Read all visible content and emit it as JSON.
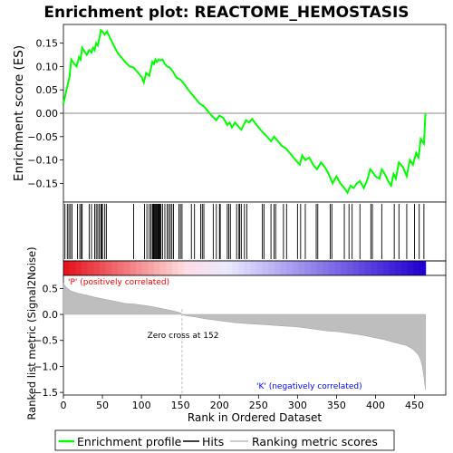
{
  "title": "Enrichment plot: REACTOME_HEMOSTASIS",
  "top_panel": {
    "ylabel": "Enrichment score (ES)"
  },
  "bottom_panel": {
    "ylabel": "Ranked list metric (Signal2Noise)",
    "xlabel": "Rank in Ordered Dataset",
    "zero_cross_label": "Zero cross at 152",
    "pos_label": "'P' (positively correlated)",
    "neg_label": "'K' (negatively correlated)"
  },
  "legend": {
    "enrichment": "Enrichment profile",
    "hits": "Hits",
    "ranking": "Ranking metric scores"
  },
  "colors": {
    "es_line": "#00ff00",
    "pos_label": "#ff0000",
    "neg_label": "#0000ff",
    "metric_fill": "#bebebe"
  },
  "chart_data": [
    {
      "type": "line",
      "name": "enrichment-profile",
      "xlim": [
        0,
        490
      ],
      "ylim": [
        -0.19,
        0.19
      ],
      "xticks": [
        0,
        50,
        100,
        150,
        200,
        250,
        300,
        350,
        400,
        450
      ],
      "yticks": [
        -0.15,
        -0.1,
        -0.05,
        0.0,
        0.05,
        0.1,
        0.15
      ],
      "ytick_labels": [
        "−0.15",
        "−0.10",
        "−0.05",
        "0.00",
        "0.05",
        "0.10",
        "0.15"
      ],
      "x": [
        0,
        2,
        4,
        6,
        8,
        10,
        14,
        17,
        20,
        22,
        24,
        26,
        30,
        33,
        36,
        38,
        40,
        42,
        44,
        46,
        48,
        50,
        53,
        56,
        60,
        63,
        66,
        70,
        75,
        80,
        85,
        90,
        95,
        100,
        103,
        106,
        110,
        112,
        114,
        116,
        118,
        120,
        122,
        124,
        127,
        130,
        133,
        136,
        140,
        145,
        150,
        155,
        160,
        165,
        170,
        175,
        180,
        185,
        190,
        193,
        196,
        200,
        205,
        210,
        213,
        216,
        220,
        225,
        228,
        231,
        234,
        238,
        242,
        246,
        250,
        255,
        258,
        262,
        266,
        270,
        275,
        280,
        285,
        290,
        295,
        300,
        303,
        306,
        310,
        315,
        320,
        325,
        330,
        335,
        340,
        345,
        350,
        355,
        360,
        364,
        368,
        372,
        376,
        380,
        385,
        390,
        393,
        396,
        400,
        405,
        408,
        412,
        416,
        420,
        423,
        426,
        430,
        435,
        440,
        444,
        448,
        452,
        455,
        458,
        462,
        464
      ],
      "y": [
        0.02,
        0.035,
        0.05,
        0.065,
        0.08,
        0.115,
        0.105,
        0.1,
        0.12,
        0.115,
        0.14,
        0.135,
        0.125,
        0.135,
        0.13,
        0.14,
        0.135,
        0.15,
        0.145,
        0.16,
        0.178,
        0.175,
        0.168,
        0.175,
        0.16,
        0.15,
        0.14,
        0.128,
        0.118,
        0.108,
        0.1,
        0.098,
        0.088,
        0.078,
        0.066,
        0.086,
        0.08,
        0.096,
        0.11,
        0.105,
        0.115,
        0.11,
        0.115,
        0.113,
        0.115,
        0.105,
        0.1,
        0.098,
        0.09,
        0.076,
        0.072,
        0.062,
        0.05,
        0.04,
        0.03,
        0.02,
        0.015,
        0.005,
        -0.005,
        -0.01,
        -0.015,
        -0.005,
        -0.01,
        -0.025,
        -0.02,
        -0.03,
        -0.02,
        -0.03,
        -0.035,
        -0.025,
        -0.015,
        -0.02,
        -0.012,
        -0.022,
        -0.03,
        -0.04,
        -0.045,
        -0.052,
        -0.06,
        -0.05,
        -0.06,
        -0.07,
        -0.075,
        -0.085,
        -0.095,
        -0.105,
        -0.11,
        -0.09,
        -0.1,
        -0.095,
        -0.11,
        -0.12,
        -0.105,
        -0.115,
        -0.13,
        -0.15,
        -0.135,
        -0.15,
        -0.16,
        -0.17,
        -0.155,
        -0.16,
        -0.15,
        -0.145,
        -0.16,
        -0.14,
        -0.12,
        -0.125,
        -0.135,
        -0.14,
        -0.12,
        -0.13,
        -0.145,
        -0.155,
        -0.13,
        -0.14,
        -0.105,
        -0.115,
        -0.135,
        -0.1,
        -0.11,
        -0.085,
        -0.095,
        -0.055,
        -0.065,
        0.0
      ]
    },
    {
      "type": "scatter",
      "name": "hits",
      "x": [
        2,
        5,
        7,
        9,
        11,
        18,
        21,
        23,
        24,
        33,
        36,
        40,
        42,
        44,
        46,
        48,
        49,
        50,
        53,
        55,
        90,
        104,
        107,
        110,
        112,
        114,
        115,
        116,
        117,
        118,
        119,
        120,
        121,
        122,
        123,
        124,
        125,
        127,
        130,
        133,
        135,
        137,
        139,
        141,
        148,
        150,
        152,
        164,
        168,
        176,
        178,
        180,
        192,
        196,
        200,
        201,
        210,
        212,
        214,
        222,
        225,
        226,
        228,
        232,
        235,
        255,
        257,
        266,
        270,
        272,
        282,
        286,
        300,
        304,
        310,
        324,
        326,
        342,
        344,
        360,
        366,
        370,
        380,
        394,
        396,
        408,
        424,
        430,
        440,
        450,
        456,
        462
      ]
    },
    {
      "type": "area",
      "name": "ranking-metric",
      "xlim": [
        0,
        490
      ],
      "ylim": [
        -1.55,
        0.75
      ],
      "yticks": [
        -1.5,
        -1.0,
        -0.5,
        0.0,
        0.5
      ],
      "ytick_labels": [
        "−1.5",
        "−1.0",
        "−0.5",
        "0.0",
        "0.5"
      ],
      "zero_cross": 152,
      "x": [
        0,
        2,
        5,
        10,
        20,
        30,
        40,
        50,
        60,
        70,
        80,
        90,
        100,
        110,
        120,
        130,
        140,
        150,
        152,
        153,
        160,
        170,
        180,
        190,
        200,
        210,
        220,
        230,
        240,
        250,
        260,
        270,
        280,
        290,
        300,
        310,
        320,
        330,
        340,
        350,
        360,
        370,
        380,
        390,
        400,
        410,
        420,
        430,
        440,
        446,
        450,
        455,
        458,
        460,
        462,
        464
      ],
      "values": [
        0.6,
        0.55,
        0.5,
        0.45,
        0.4,
        0.37,
        0.33,
        0.3,
        0.27,
        0.24,
        0.21,
        0.2,
        0.18,
        0.16,
        0.13,
        0.1,
        0.07,
        0.03,
        0.0,
        -0.01,
        -0.03,
        -0.05,
        -0.08,
        -0.1,
        -0.12,
        -0.14,
        -0.16,
        -0.17,
        -0.18,
        -0.19,
        -0.2,
        -0.21,
        -0.22,
        -0.23,
        -0.24,
        -0.26,
        -0.28,
        -0.3,
        -0.32,
        -0.33,
        -0.35,
        -0.37,
        -0.39,
        -0.42,
        -0.45,
        -0.48,
        -0.52,
        -0.56,
        -0.6,
        -0.65,
        -0.7,
        -0.78,
        -0.88,
        -1.0,
        -1.2,
        -1.45
      ]
    }
  ]
}
